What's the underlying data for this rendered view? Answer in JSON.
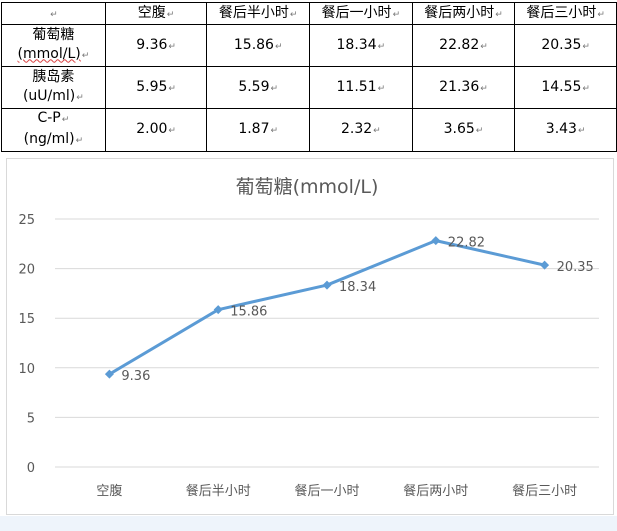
{
  "table": {
    "corner_mark": "↵",
    "cell_mark": "↵",
    "headers": [
      "空腹",
      "餐后半小时",
      "餐后一小时",
      "餐后两小时",
      "餐后三小时"
    ],
    "rows": [
      {
        "name": "葡萄糖",
        "unit": "(mmol/L)",
        "values": [
          "9.36",
          "15.86",
          "18.34",
          "22.82",
          "20.35"
        ]
      },
      {
        "name": "胰岛素",
        "unit": "(uU/ml)",
        "values": [
          "5.95",
          "5.59",
          "11.51",
          "21.36",
          "14.55"
        ]
      },
      {
        "name": "C-P",
        "unit": "(ng/ml)",
        "values": [
          "2.00",
          "1.87",
          "2.32",
          "3.65",
          "3.43"
        ]
      }
    ]
  },
  "chart_data": {
    "type": "line",
    "title": "葡萄糖(mmol/L)",
    "categories": [
      "空腹",
      "餐后半小时",
      "餐后一小时",
      "餐后两小时",
      "餐后三小时"
    ],
    "series": [
      {
        "values": [
          9.36,
          15.86,
          18.34,
          22.82,
          20.35
        ],
        "color": "#5b9bd5"
      }
    ],
    "data_labels": [
      "9.36",
      "15.86",
      "18.34",
      "22.82",
      "20.35"
    ],
    "ylim": [
      0,
      25
    ],
    "yticks": [
      0,
      5,
      10,
      15,
      20,
      25
    ],
    "grid": true,
    "legend": "none",
    "gridline_color": "#d9d9d9",
    "text_color": "#595959"
  }
}
